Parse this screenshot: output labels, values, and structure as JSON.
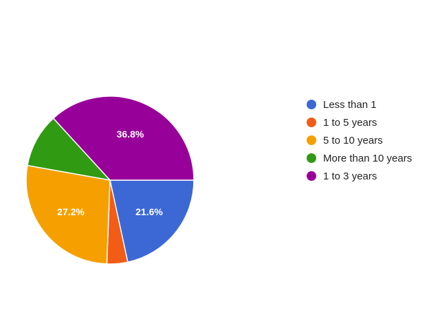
{
  "chart_data": {
    "type": "pie",
    "legend_position": "right",
    "slices": [
      {
        "name": "Less than 1",
        "value": 21.6,
        "label": "21.6%",
        "color": "#3c68d6"
      },
      {
        "name": "1 to 5 years",
        "value": 4.0,
        "label": "",
        "color": "#f25c17"
      },
      {
        "name": "5 to 10 years",
        "value": 27.2,
        "label": "27.2%",
        "color": "#f5a000"
      },
      {
        "name": "More than 10 years",
        "value": 10.4,
        "label": "",
        "color": "#2f9a12"
      },
      {
        "name": "1 to 3 years",
        "value": 36.8,
        "label": "36.8%",
        "color": "#970099"
      }
    ]
  }
}
